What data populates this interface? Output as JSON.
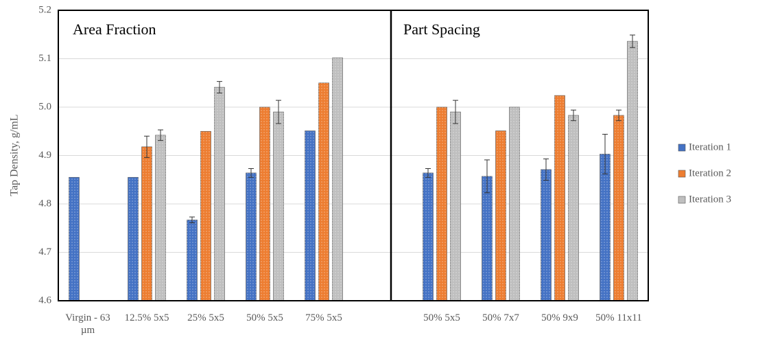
{
  "chart_data": {
    "type": "bar",
    "ylabel": "Tap Density, g/mL",
    "annotations": [
      "Area Fraction",
      "Part Spacing"
    ],
    "categories": [
      "Virgin - 63 µm",
      "12.5% 5x5",
      "25% 5x5",
      "50% 5x5",
      "75% 5x5",
      null,
      "50% 5x5",
      "50% 7x7",
      "50% 9x9",
      "50% 11x11"
    ],
    "series": [
      {
        "name": "Iteration 1",
        "color": "#4472c4",
        "values": [
          4.855,
          4.855,
          4.767,
          4.864,
          4.951,
          null,
          4.864,
          4.857,
          4.871,
          4.903
        ],
        "errors": [
          null,
          null,
          0.006,
          0.009,
          null,
          null,
          0.009,
          0.034,
          0.022,
          0.041
        ]
      },
      {
        "name": "Iteration 2",
        "color": "#ed7d31",
        "values": [
          null,
          4.918,
          4.95,
          5.0,
          5.05,
          null,
          5.0,
          4.951,
          5.024,
          4.983
        ],
        "errors": [
          null,
          0.022,
          null,
          null,
          null,
          null,
          null,
          null,
          null,
          0.011
        ]
      },
      {
        "name": "Iteration 3",
        "color": "#bfbfbf",
        "values": [
          null,
          4.942,
          5.041,
          4.99,
          5.102,
          null,
          4.99,
          5.0,
          4.983,
          5.136
        ],
        "errors": [
          null,
          0.011,
          0.012,
          0.024,
          null,
          null,
          0.024,
          null,
          0.011,
          0.013
        ]
      }
    ],
    "ylim": [
      4.6,
      5.2
    ],
    "yticks": [
      4.6,
      4.7,
      4.8,
      4.9,
      {
        "value": 5,
        "label": "5.0"
      },
      5.1,
      5.2
    ],
    "grid": true,
    "legend": "right"
  }
}
